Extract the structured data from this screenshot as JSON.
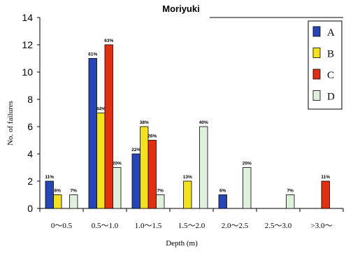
{
  "chart_data": {
    "type": "bar",
    "title": "Moriyuki",
    "xlabel": "Depth (m)",
    "ylabel": "No. of failures",
    "ylim": [
      0,
      14
    ],
    "yticks": [
      "0",
      "2",
      "4",
      "6",
      "8",
      "10",
      "12",
      "14"
    ],
    "categories": [
      "0～0.5",
      "0.5～1.0",
      "1.0～1.5",
      "1.5～2.0",
      "2.0～2.5",
      "2.5～3.0",
      ">3.0～"
    ],
    "legend_position": "top-right",
    "grid": false,
    "series": [
      {
        "name": "A",
        "color": "#2646b8",
        "values": [
          2,
          11,
          4,
          0,
          1,
          0,
          0
        ],
        "labels": [
          "11%",
          "61%",
          "22%",
          "",
          "6%",
          "",
          ""
        ]
      },
      {
        "name": "B",
        "color": "#f5e21f",
        "values": [
          1,
          7,
          6,
          2,
          0,
          0,
          0
        ],
        "labels": [
          "6%",
          "44%",
          "38%",
          "13%",
          "",
          "",
          ""
        ]
      },
      {
        "name": "C",
        "color": "#e03010",
        "values": [
          0,
          12,
          5,
          0,
          0,
          0,
          2
        ],
        "labels": [
          "",
          "63%",
          "26%",
          "",
          "",
          "",
          "11%"
        ]
      },
      {
        "name": "D",
        "color": "#dff0dc",
        "values": [
          1,
          3,
          1,
          6,
          3,
          1,
          0
        ],
        "labels": [
          "7%",
          "20%",
          "7%",
          "40%",
          "20%",
          "7%",
          ""
        ]
      }
    ]
  }
}
